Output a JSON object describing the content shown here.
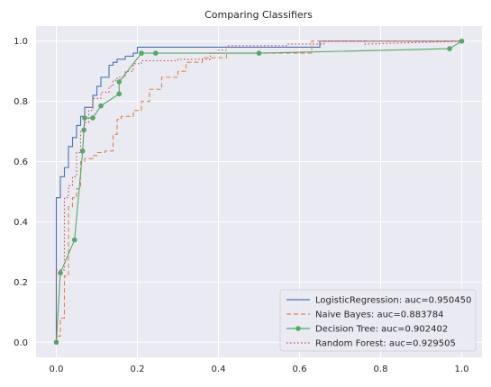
{
  "chart_data": {
    "type": "line",
    "title": "Comparing Classifiers",
    "xlabel": "",
    "ylabel": "",
    "xlim": [
      -0.05,
      1.05
    ],
    "ylim": [
      -0.05,
      1.05
    ],
    "grid": true,
    "legend_position": "bottom-right",
    "x_ticks": [
      0.0,
      0.2,
      0.4,
      0.6,
      0.8,
      1.0
    ],
    "x_tick_labels": [
      "0.0",
      "0.2",
      "0.4",
      "0.6",
      "0.8",
      "1.0"
    ],
    "y_ticks": [
      0.0,
      0.2,
      0.4,
      0.6,
      0.8,
      1.0
    ],
    "y_tick_labels": [
      "0.0",
      "0.2",
      "0.4",
      "0.6",
      "0.8",
      "1.0"
    ],
    "series": [
      {
        "name": "LogisticRegression: auc=0.950450",
        "color": "#4c72b0",
        "style": "solid",
        "marker": false,
        "x": [
          0,
          0,
          0.01,
          0.01,
          0.02,
          0.02,
          0.03,
          0.03,
          0.04,
          0.04,
          0.05,
          0.05,
          0.06,
          0.06,
          0.07,
          0.07,
          0.09,
          0.09,
          0.1,
          0.1,
          0.11,
          0.11,
          0.13,
          0.13,
          0.14,
          0.14,
          0.15,
          0.15,
          0.17,
          0.17,
          0.19,
          0.19,
          0.2,
          0.2,
          0.27,
          0.27,
          0.65,
          0.65,
          1.0
        ],
        "y": [
          0,
          0.48,
          0.48,
          0.55,
          0.55,
          0.58,
          0.58,
          0.65,
          0.65,
          0.68,
          0.68,
          0.72,
          0.72,
          0.75,
          0.75,
          0.78,
          0.78,
          0.82,
          0.82,
          0.85,
          0.85,
          0.88,
          0.88,
          0.92,
          0.92,
          0.93,
          0.93,
          0.94,
          0.94,
          0.95,
          0.95,
          0.96,
          0.96,
          0.98,
          0.98,
          0.98,
          0.98,
          1.0,
          1.0
        ]
      },
      {
        "name": "Naive Bayes: auc=0.883784",
        "color": "#dd8452",
        "style": "dashed",
        "marker": false,
        "x": [
          0,
          0,
          0.01,
          0.01,
          0.02,
          0.02,
          0.03,
          0.03,
          0.04,
          0.04,
          0.05,
          0.05,
          0.06,
          0.06,
          0.07,
          0.07,
          0.09,
          0.09,
          0.1,
          0.1,
          0.12,
          0.12,
          0.14,
          0.14,
          0.15,
          0.15,
          0.16,
          0.16,
          0.19,
          0.19,
          0.21,
          0.21,
          0.23,
          0.23,
          0.26,
          0.26,
          0.3,
          0.3,
          0.32,
          0.32,
          0.36,
          0.36,
          0.42,
          0.42,
          0.63,
          0.63,
          1.0
        ],
        "y": [
          0,
          0.02,
          0.02,
          0.08,
          0.08,
          0.22,
          0.22,
          0.45,
          0.45,
          0.48,
          0.48,
          0.51,
          0.51,
          0.6,
          0.6,
          0.61,
          0.61,
          0.62,
          0.62,
          0.63,
          0.63,
          0.635,
          0.635,
          0.69,
          0.69,
          0.74,
          0.74,
          0.75,
          0.75,
          0.77,
          0.77,
          0.8,
          0.8,
          0.84,
          0.84,
          0.88,
          0.88,
          0.9,
          0.9,
          0.93,
          0.93,
          0.945,
          0.945,
          0.96,
          0.96,
          1.0,
          1.0
        ]
      },
      {
        "name": "Decision Tree: auc=0.902402",
        "color": "#55a868",
        "style": "solid",
        "marker": true,
        "x": [
          0.0,
          0.01,
          0.045,
          0.065,
          0.068,
          0.07,
          0.09,
          0.11,
          0.155,
          0.155,
          0.21,
          0.245,
          0.5,
          0.97,
          1.0
        ],
        "y": [
          0.0,
          0.23,
          0.34,
          0.635,
          0.705,
          0.745,
          0.745,
          0.785,
          0.825,
          0.865,
          0.96,
          0.96,
          0.96,
          0.975,
          1.0
        ]
      },
      {
        "name": "Random Forest: auc=0.929505",
        "color": "#c44e52",
        "style": "dotted",
        "marker": false,
        "x": [
          0,
          0,
          0.02,
          0.02,
          0.03,
          0.03,
          0.04,
          0.04,
          0.05,
          0.05,
          0.06,
          0.06,
          0.07,
          0.07,
          0.08,
          0.08,
          0.09,
          0.09,
          0.11,
          0.11,
          0.13,
          0.13,
          0.14,
          0.14,
          0.15,
          0.15,
          0.17,
          0.17,
          0.19,
          0.19,
          0.21,
          0.21,
          0.24,
          0.24,
          0.3,
          0.3,
          0.38,
          0.38,
          0.4,
          0.4,
          0.42,
          0.42,
          0.57,
          0.57,
          0.66,
          0.66,
          0.76,
          0.76,
          1.0
        ],
        "y": [
          0,
          0.24,
          0.24,
          0.48,
          0.48,
          0.52,
          0.52,
          0.55,
          0.55,
          0.63,
          0.63,
          0.7,
          0.7,
          0.73,
          0.73,
          0.77,
          0.77,
          0.81,
          0.81,
          0.83,
          0.83,
          0.85,
          0.85,
          0.87,
          0.87,
          0.88,
          0.88,
          0.9,
          0.9,
          0.925,
          0.925,
          0.935,
          0.935,
          0.935,
          0.935,
          0.94,
          0.94,
          0.96,
          0.96,
          0.97,
          0.97,
          0.985,
          0.985,
          0.99,
          0.99,
          1.0,
          1.0,
          0.99,
          1.0
        ]
      }
    ]
  }
}
